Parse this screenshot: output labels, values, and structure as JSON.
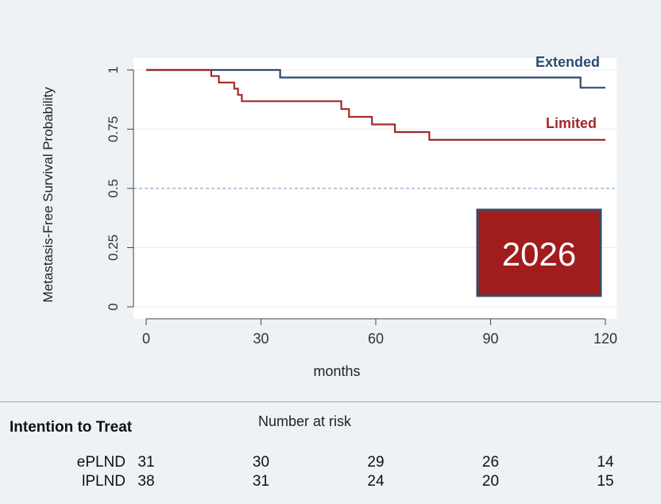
{
  "chart_data": {
    "type": "line",
    "ylabel": "Metastasis-Free Survival Probability",
    "xlabel": "months",
    "xlim": [
      0,
      120
    ],
    "ylim": [
      0,
      1
    ],
    "x_ticks": [
      0,
      30,
      60,
      90,
      120
    ],
    "y_ticks": [
      "0",
      "0.25",
      "0.5",
      "0.75",
      "1"
    ],
    "y_tick_values": [
      0,
      0.25,
      0.5,
      0.75,
      1
    ],
    "reference_line": 0.5,
    "series": [
      {
        "name": "Extended",
        "color": "#2c4a6e",
        "step": [
          [
            0,
            1
          ],
          [
            35,
            1
          ],
          [
            35,
            0.968
          ],
          [
            113.5,
            0.968
          ],
          [
            113.5,
            0.925
          ],
          [
            120,
            0.925
          ]
        ]
      },
      {
        "name": "Limited",
        "color": "#a02a2a",
        "step": [
          [
            0,
            1
          ],
          [
            17,
            1
          ],
          [
            17,
            0.974
          ],
          [
            19,
            0.974
          ],
          [
            19,
            0.947
          ],
          [
            23,
            0.947
          ],
          [
            23,
            0.921
          ],
          [
            24,
            0.921
          ],
          [
            24,
            0.895
          ],
          [
            25,
            0.895
          ],
          [
            25,
            0.868
          ],
          [
            51,
            0.868
          ],
          [
            51,
            0.835
          ],
          [
            53,
            0.835
          ],
          [
            53,
            0.802
          ],
          [
            59,
            0.802
          ],
          [
            59,
            0.77
          ],
          [
            65,
            0.77
          ],
          [
            65,
            0.738
          ],
          [
            74,
            0.738
          ],
          [
            74,
            0.705
          ],
          [
            120,
            0.705
          ]
        ]
      }
    ],
    "badge": "2026"
  },
  "risk_table": {
    "title": "Number at risk",
    "group_label": "Intention to Treat",
    "rows": [
      {
        "label": "ePLND",
        "values": [
          "31",
          "30",
          "29",
          "26",
          "14"
        ]
      },
      {
        "label": "lPLND",
        "values": [
          "38",
          "31",
          "24",
          "20",
          "15"
        ]
      }
    ]
  }
}
